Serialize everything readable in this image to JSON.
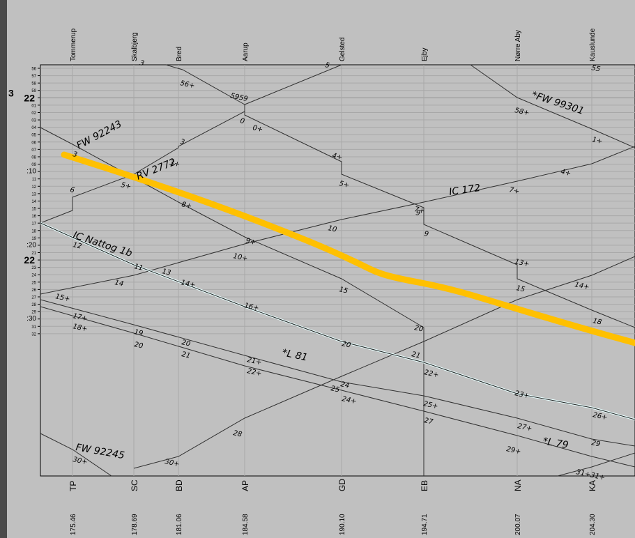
{
  "hour_label": "22",
  "left_digit": "3",
  "stations": [
    {
      "name": "Tommerup",
      "code": "TP",
      "km": "175.46"
    },
    {
      "name": "Skalbjerg",
      "code": "SC",
      "km": "178.69"
    },
    {
      "name": "Bred",
      "code": "BD",
      "km": "181.06"
    },
    {
      "name": "Aarup",
      "code": "AP",
      "km": "184.58"
    },
    {
      "name": "Gelsted",
      "code": "GD",
      "km": "190.10"
    },
    {
      "name": "Ejby",
      "code": "EB",
      "km": "194.71"
    },
    {
      "name": "Nørre Aby",
      "code": "NA",
      "km": "200.07"
    },
    {
      "name": "Kauslunde",
      "code": "KA",
      "km": "204.30"
    }
  ],
  "minute_labels": [
    "56",
    "57",
    "58",
    "59",
    "22",
    "01",
    "02",
    "03",
    "04",
    "05",
    "06",
    "07",
    "08",
    "09",
    ":10",
    "11",
    "12",
    "13",
    "14",
    "15",
    "16",
    "17",
    "18",
    "19",
    ":20",
    "21",
    "22",
    "23",
    "24",
    "25",
    "26",
    "27",
    "28",
    "29",
    ":30",
    "31",
    "32"
  ],
  "train_labels": [
    "FW 92243",
    "RV 2772",
    "IC 172",
    "*FW 99301",
    "IC Nattog 1b",
    "*L 81",
    "FW 92245",
    "*L 79"
  ],
  "stop_minutes": [
    "56+",
    "5959",
    "0",
    "0+",
    "58+",
    "1+",
    "3",
    "3+",
    "3",
    "4+",
    "5+",
    "4+",
    "5+",
    "7+",
    "6",
    "8+",
    "7+",
    "9",
    "9",
    "10",
    "9+",
    "10+",
    "12",
    "11",
    "13",
    "13+",
    "14",
    "14+",
    "14+",
    "15",
    "15",
    "15+",
    "16+",
    "17+",
    "18+",
    "18",
    "19",
    "20",
    "20",
    "20",
    "20",
    "21",
    "21",
    "21+",
    "22+",
    "22+",
    "23+",
    "24",
    "25",
    "24+",
    "25+",
    "26+",
    "27",
    "27+",
    "28",
    "29+",
    "29",
    "30+",
    "30+",
    "31+31+",
    "55",
    "5",
    "3"
  ],
  "highlight": {
    "color": "#ffc000"
  },
  "colors": {
    "background": "#c0c0c0",
    "grid": "#a8a8a8",
    "train": "#303030",
    "nattog_highlight": "#e8ffff"
  }
}
